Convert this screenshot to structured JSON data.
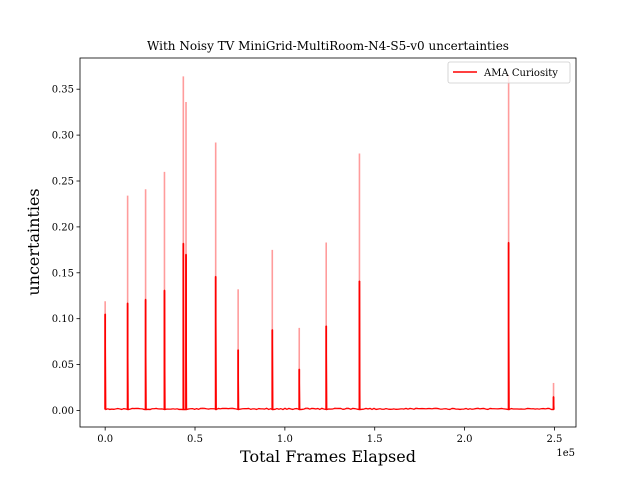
{
  "chart_data": {
    "type": "line",
    "title": "With Noisy TV MiniGrid-MultiRoom-N4-S5-v0 uncertainties",
    "xlabel": "Total Frames Elapsed",
    "ylabel": "uncertainties",
    "x_offset_label": "1e5",
    "xlim": [
      -14000,
      262000
    ],
    "ylim": [
      -0.018,
      0.384
    ],
    "x_ticks": [
      0,
      50000,
      100000,
      150000,
      200000,
      250000
    ],
    "x_tick_labels": [
      "0.0",
      "0.5",
      "1.0",
      "1.5",
      "2.0",
      "2.5"
    ],
    "y_ticks": [
      0.0,
      0.05,
      0.1,
      0.15,
      0.2,
      0.25,
      0.3,
      0.35
    ],
    "y_tick_labels": [
      "0.00",
      "0.05",
      "0.10",
      "0.15",
      "0.20",
      "0.25",
      "0.30",
      "0.35"
    ],
    "grid": false,
    "legend_position": "top-right",
    "series": [
      {
        "name": "AMA Curiosity",
        "color": "#ff0000",
        "band_color": "#ff9c9c",
        "baseline": 0.001,
        "spikes": [
          {
            "x": 0,
            "mean": 0.105,
            "upper": 0.119
          },
          {
            "x": 12500,
            "mean": 0.117,
            "upper": 0.234
          },
          {
            "x": 22500,
            "mean": 0.121,
            "upper": 0.241
          },
          {
            "x": 33000,
            "mean": 0.131,
            "upper": 0.26
          },
          {
            "x": 43500,
            "mean": 0.182,
            "upper": 0.364
          },
          {
            "x": 45000,
            "mean": 0.17,
            "upper": 0.336
          },
          {
            "x": 61500,
            "mean": 0.146,
            "upper": 0.292
          },
          {
            "x": 74000,
            "mean": 0.066,
            "upper": 0.132
          },
          {
            "x": 93000,
            "mean": 0.088,
            "upper": 0.175
          },
          {
            "x": 108000,
            "mean": 0.045,
            "upper": 0.09
          },
          {
            "x": 123000,
            "mean": 0.092,
            "upper": 0.183
          },
          {
            "x": 141500,
            "mean": 0.141,
            "upper": 0.28
          },
          {
            "x": 224500,
            "mean": 0.183,
            "upper": 0.366
          },
          {
            "x": 249500,
            "mean": 0.015,
            "upper": 0.03
          }
        ]
      }
    ]
  }
}
